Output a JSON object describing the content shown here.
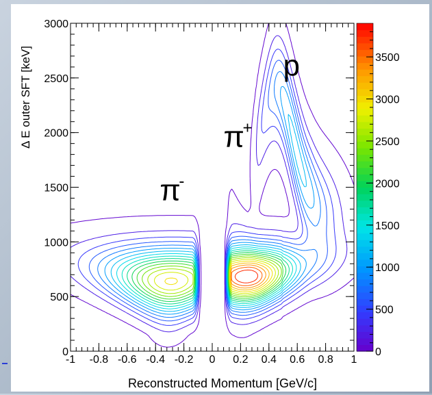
{
  "chart_data": {
    "type": "contour",
    "xlabel": "Reconstructed Momentum [GeV/c]",
    "ylabel": "Δ E outer SFT [keV]",
    "xlim": [
      -1,
      1
    ],
    "ylim": [
      0,
      3000
    ],
    "x_ticks": [
      "-1",
      "-0.8",
      "-0.6",
      "-0.4",
      "-0.2",
      "0",
      "0.2",
      "0.4",
      "0.6",
      "0.8",
      "1"
    ],
    "y_ticks": [
      "0",
      "500",
      "1000",
      "1500",
      "2000",
      "2500",
      "3000"
    ],
    "colorbar": {
      "range": [
        0,
        3900
      ],
      "ticks": [
        "0",
        "500",
        "1000",
        "1500",
        "2000",
        "2500",
        "3000",
        "3500"
      ]
    },
    "contour_levels": 20,
    "annotations": [
      {
        "text": "π",
        "sup": "-",
        "x": -0.37,
        "y": 1380
      },
      {
        "text": "π",
        "sup": "+",
        "x": 0.08,
        "y": 1870
      },
      {
        "text": "p",
        "x": 0.5,
        "y": 2520
      }
    ],
    "series": [
      {
        "name": "π-",
        "peak_x": -0.19,
        "peak_y": 640,
        "peak_count": 3000
      },
      {
        "name": "π+",
        "peak_x": 0.19,
        "peak_y": 680,
        "peak_count": 3900
      },
      {
        "name": "p",
        "peak_x": 0.6,
        "peak_y": 1300,
        "peak_count": 1300
      }
    ]
  }
}
